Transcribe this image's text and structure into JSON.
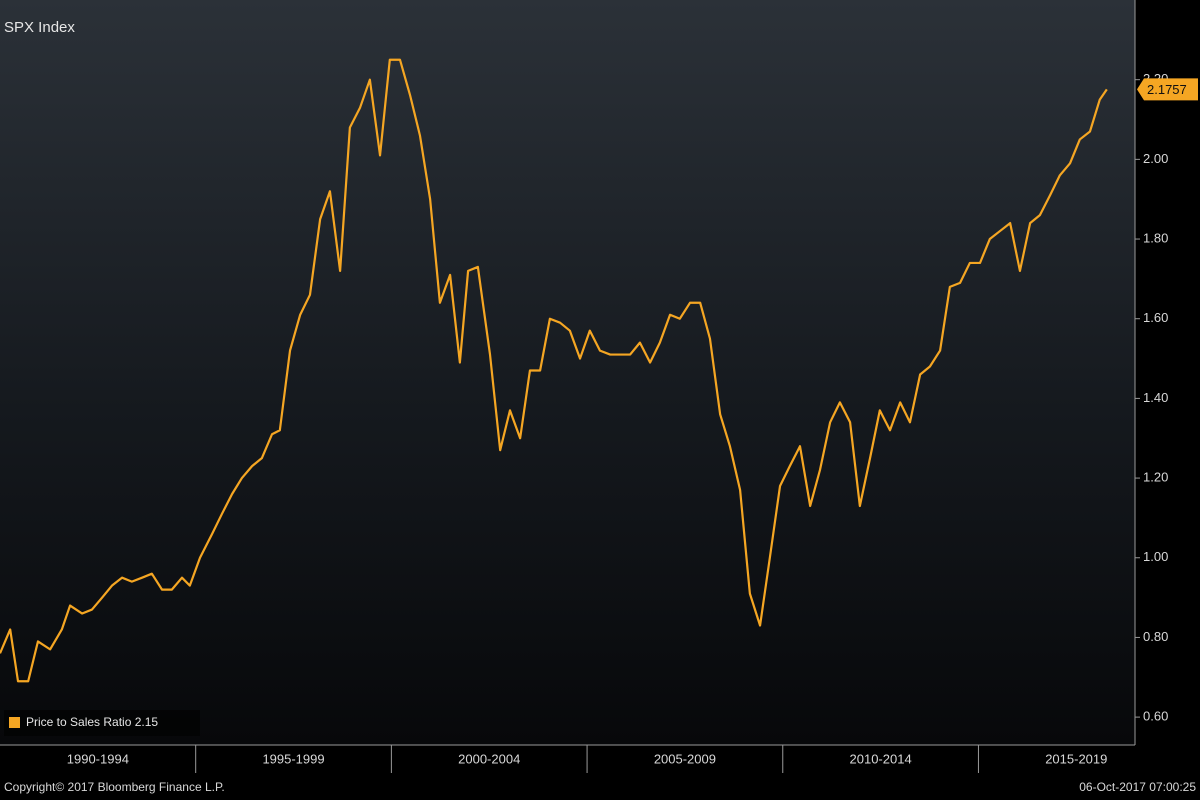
{
  "chart_data": {
    "type": "line",
    "title": "SPX Index",
    "series": [
      {
        "name": "Price to Sales Ratio",
        "color": "#f5a623",
        "x": [
          1990,
          1990.26,
          1990.46,
          1990.72,
          1990.97,
          1991.28,
          1991.58,
          1991.79,
          1992.1,
          1992.35,
          1992.61,
          1992.86,
          1993.12,
          1993.37,
          1993.63,
          1993.88,
          1994.14,
          1994.39,
          1994.65,
          1994.85,
          1995.11,
          1995.42,
          1995.67,
          1995.93,
          1996.18,
          1996.44,
          1996.69,
          1996.95,
          1997.15,
          1997.41,
          1997.67,
          1997.92,
          1998.18,
          1998.43,
          1998.69,
          1998.94,
          1999.2,
          1999.45,
          1999.71,
          1999.96,
          2000.22,
          2000.48,
          2000.73,
          2000.99,
          2001.24,
          2001.5,
          2001.75,
          2001.96,
          2002.21,
          2002.52,
          2002.78,
          2003.03,
          2003.29,
          2003.54,
          2003.8,
          2004.05,
          2004.31,
          2004.56,
          2004.82,
          2005.07,
          2005.33,
          2005.59,
          2005.84,
          2006.1,
          2006.35,
          2006.61,
          2006.86,
          2007.12,
          2007.37,
          2007.63,
          2007.89,
          2008.14,
          2008.4,
          2008.65,
          2008.91,
          2009.16,
          2009.42,
          2009.67,
          2009.93,
          2010.18,
          2010.44,
          2010.7,
          2010.95,
          2011.21,
          2011.46,
          2011.72,
          2011.97,
          2012.23,
          2012.48,
          2012.74,
          2013,
          2013.25,
          2013.51,
          2013.76,
          2014.02,
          2014.27,
          2014.53,
          2014.78,
          2015.04,
          2015.29,
          2015.55,
          2015.81,
          2016.06,
          2016.32,
          2016.57,
          2016.83,
          2017.08,
          2017.34,
          2017.59,
          2017.85,
          2018.1,
          2018.28
        ],
        "values": [
          0.76,
          0.82,
          0.69,
          0.69,
          0.79,
          0.77,
          0.82,
          0.88,
          0.86,
          0.87,
          0.9,
          0.93,
          0.95,
          0.94,
          0.95,
          0.96,
          0.92,
          0.92,
          0.95,
          0.93,
          1.0,
          1.06,
          1.11,
          1.16,
          1.2,
          1.23,
          1.25,
          1.31,
          1.32,
          1.52,
          1.61,
          1.66,
          1.85,
          1.92,
          1.72,
          2.08,
          2.13,
          2.2,
          2.01,
          2.25,
          2.25,
          2.16,
          2.06,
          1.9,
          1.64,
          1.71,
          1.49,
          1.72,
          1.73,
          1.51,
          1.27,
          1.37,
          1.3,
          1.47,
          1.47,
          1.6,
          1.59,
          1.57,
          1.5,
          1.57,
          1.52,
          1.51,
          1.51,
          1.51,
          1.54,
          1.49,
          1.54,
          1.61,
          1.6,
          1.64,
          1.64,
          1.55,
          1.36,
          1.28,
          1.17,
          0.91,
          0.83,
          1.0,
          1.18,
          1.23,
          1.28,
          1.13,
          1.22,
          1.34,
          1.39,
          1.34,
          1.13,
          1.25,
          1.37,
          1.32,
          1.39,
          1.34,
          1.46,
          1.48,
          1.52,
          1.68,
          1.69,
          1.74,
          1.74,
          1.8,
          1.82,
          1.84,
          1.72,
          1.84,
          1.86,
          1.91,
          1.96,
          1.99,
          2.05,
          2.07,
          2.15,
          2.1757
        ]
      }
    ],
    "xlim": [
      1990,
      2019
    ],
    "xticks": [
      {
        "value": 1992.5,
        "label": "1990-1994"
      },
      {
        "value": 1997.5,
        "label": "1995-1999"
      },
      {
        "value": 2002.5,
        "label": "2000-2004"
      },
      {
        "value": 2007.5,
        "label": "2005-2009"
      },
      {
        "value": 2012.5,
        "label": "2010-2014"
      },
      {
        "value": 2017.5,
        "label": "2015-2019"
      }
    ],
    "ylim": [
      0.53,
      2.4
    ],
    "yticks": [
      {
        "value": 0.6,
        "label": "0.60"
      },
      {
        "value": 0.8,
        "label": "0.80"
      },
      {
        "value": 1.0,
        "label": "1.00"
      },
      {
        "value": 1.2,
        "label": "1.20"
      },
      {
        "value": 1.4,
        "label": "1.40"
      },
      {
        "value": 1.6,
        "label": "1.60"
      },
      {
        "value": 1.8,
        "label": "1.80"
      },
      {
        "value": 2.0,
        "label": "2.00"
      },
      {
        "value": 2.2,
        "label": "2.20"
      }
    ],
    "legend": "bottom-left",
    "footer_left": "Copyright© 2017 Bloomberg Finance L.P.",
    "footer_right": "06-Oct-2017 07:00:25"
  }
}
